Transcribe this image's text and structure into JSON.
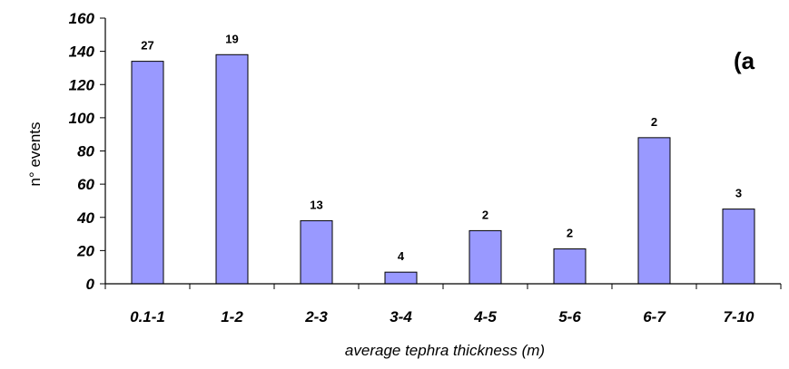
{
  "chart_data": {
    "type": "bar",
    "categories": [
      "0.1-1",
      "1-2",
      "2-3",
      "3-4",
      "4-5",
      "5-6",
      "6-7",
      "7-10"
    ],
    "values": [
      134,
      138,
      38,
      7,
      32,
      21,
      88,
      45
    ],
    "data_labels": [
      "27",
      "19",
      "13",
      "4",
      "2",
      "2",
      "2",
      "3"
    ],
    "xlabel": "average tephra thickness (m)",
    "ylabel": "n° events",
    "ylim": [
      0,
      160
    ],
    "yticks": [
      "0",
      "20",
      "40",
      "60",
      "80",
      "100",
      "120",
      "140",
      "160"
    ],
    "panel_label": "(a",
    "grid": false,
    "legend": "none",
    "colors": {
      "bar_fill": "#9999ff",
      "bar_stroke": "#000000"
    }
  }
}
